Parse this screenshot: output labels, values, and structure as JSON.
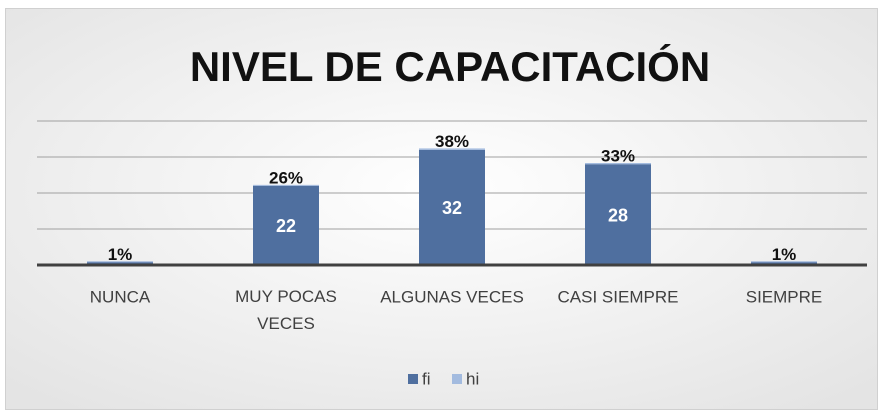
{
  "chart_data": {
    "type": "stacked_bar",
    "title": "NIVEL DE CAPACITACIÓN",
    "categories": [
      "NUNCA",
      "MUY POCAS VECES",
      "ALGUNAS VECES",
      "CASI SIEMPRE",
      "SIEMPRE"
    ],
    "series": [
      {
        "name": "fi",
        "color": "#4f6f9f",
        "values": [
          1,
          22,
          32,
          28,
          1
        ]
      },
      {
        "name": "hi",
        "color": "#a3bbdf",
        "values": [
          0.01,
          0.26,
          0.38,
          0.33,
          0.01
        ],
        "value_labels": [
          "1%",
          "26%",
          "38%",
          "33%",
          "1%"
        ]
      }
    ],
    "ylim": [
      0,
      40
    ],
    "yticks": [
      0,
      10,
      20,
      30,
      40
    ],
    "grid": true,
    "legend": "bottom"
  }
}
